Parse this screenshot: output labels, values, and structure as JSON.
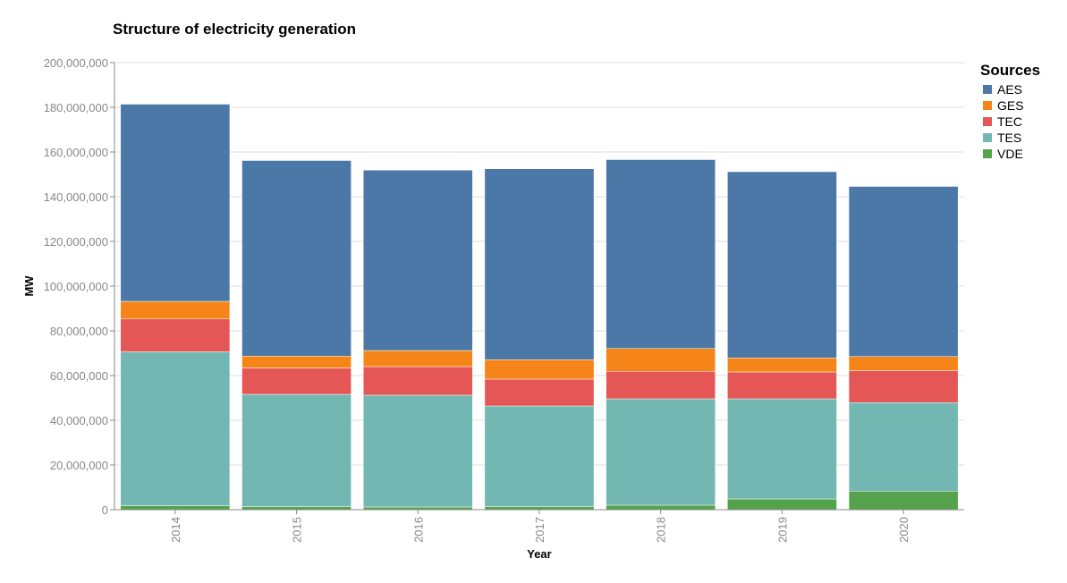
{
  "chart_data": {
    "type": "bar",
    "stacked": true,
    "title": "Structure of electricity generation",
    "xlabel": "Year",
    "ylabel": "MW",
    "ylim": [
      0,
      200000000
    ],
    "yticks": [
      "0",
      "20,000,000",
      "40,000,000",
      "60,000,000",
      "80,000,000",
      "100,000,000",
      "120,000,000",
      "140,000,000",
      "160,000,000",
      "180,000,000",
      "200,000,000"
    ],
    "ytick_values": [
      0,
      20000000,
      40000000,
      60000000,
      80000000,
      100000000,
      120000000,
      140000000,
      160000000,
      180000000,
      200000000
    ],
    "grid": true,
    "legend": {
      "title": "Sources",
      "placement": "right"
    },
    "categories": [
      "2014",
      "2015",
      "2016",
      "2017",
      "2018",
      "2019",
      "2020"
    ],
    "series": [
      {
        "name": "VDE",
        "color": "#54a24b",
        "values": [
          1800000,
          1400000,
          1200000,
          1400000,
          2000000,
          4800000,
          8300000
        ]
      },
      {
        "name": "TES",
        "color": "#72b7b2",
        "values": [
          68800000,
          50200000,
          50000000,
          45000000,
          47600000,
          44800000,
          39600000
        ]
      },
      {
        "name": "TEC",
        "color": "#e45756",
        "values": [
          14700000,
          11800000,
          12800000,
          12000000,
          12300000,
          12000000,
          14300000
        ]
      },
      {
        "name": "GES",
        "color": "#f58518",
        "values": [
          7900000,
          5300000,
          7200000,
          8700000,
          10200000,
          6300000,
          6300000
        ]
      },
      {
        "name": "AES",
        "color": "#4c78a8",
        "values": [
          88200000,
          87500000,
          80700000,
          85400000,
          84500000,
          83300000,
          76100000
        ]
      }
    ],
    "legend_order": [
      "AES",
      "GES",
      "TEC",
      "TES",
      "VDE"
    ]
  }
}
